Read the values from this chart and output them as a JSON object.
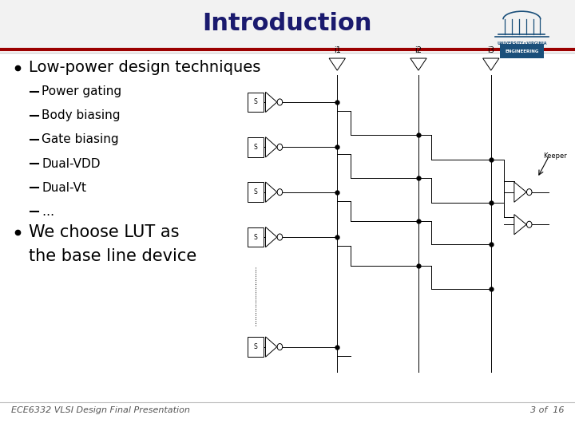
{
  "title": "Introduction",
  "title_color": "#1a1a6e",
  "title_fontsize": 22,
  "slide_bg": "#FFFFFF",
  "header_bg": "#F2F2F2",
  "header_bar_red": "#9B0000",
  "header_bar_gray": "#CCCCCC",
  "bullet1": "Low-power design techniques",
  "sub_bullets": [
    "Power gating",
    "Body biasing",
    "Gate biasing",
    "Dual-VDD",
    "Dual-Vt",
    "…"
  ],
  "bullet2_line1": "We choose LUT as",
  "bullet2_line2": "the base line device",
  "footer_left": "ECE6332 VLSI Design Final Presentation",
  "footer_right": "3 of  16",
  "footer_color": "#555555",
  "footer_fontsize": 8,
  "bullet_fontsize": 14,
  "sub_bullet_fontsize": 11,
  "bullet2_fontsize": 15
}
